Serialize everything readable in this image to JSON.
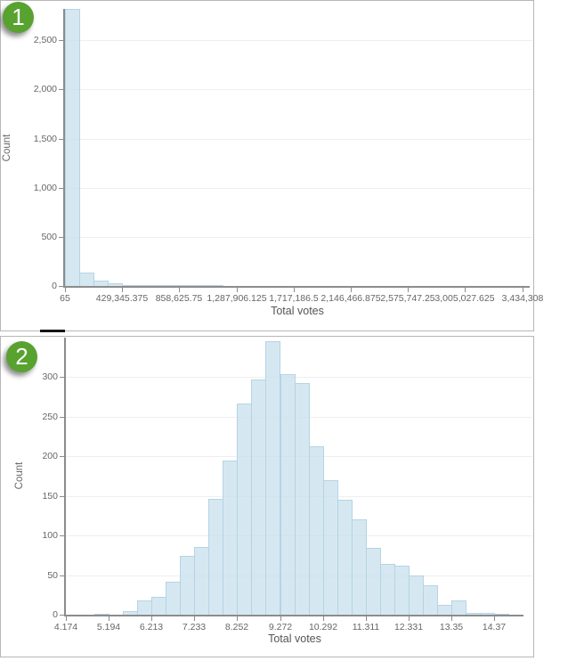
{
  "badges": {
    "panel1": "1",
    "panel2": "2"
  },
  "colors": {
    "bar_fill": "rgba(199,224,238,0.75)",
    "bar_border": "#b6d3e3",
    "accent_green": "#58a22f",
    "axis": "#8c8c8c",
    "grid": "#eeeeee",
    "tick_text": "#666666",
    "axis_title_text": "#555555",
    "panel_border": "#b7b7b7"
  },
  "chart_data": [
    {
      "type": "bar",
      "subtype": "histogram",
      "title": "",
      "xlabel": "Total votes",
      "ylabel": "Count",
      "grid": true,
      "legend": "none",
      "bin_start": 65,
      "bin_width": 107320.094,
      "values": [
        2820,
        140,
        55,
        30,
        10,
        6,
        3,
        2,
        1,
        1,
        1,
        0,
        0,
        0,
        0,
        0,
        0,
        0,
        0,
        0,
        0,
        0,
        0,
        0,
        0,
        0,
        0,
        0,
        0,
        0,
        0,
        0
      ],
      "x_tick_values": [
        65,
        429345.375,
        858625.75,
        1287906.125,
        1717186.5,
        2146466.875,
        2575747.25,
        3005027.625,
        3434308
      ],
      "x_tick_labels": [
        "65",
        "429,345.375",
        "858,625.75",
        "1,287,906.125",
        "1,717,186.5",
        "2,146,466.875",
        "2,575,747.25",
        "3,005,027.625",
        "3,434,308"
      ],
      "y_tick_values": [
        0,
        500,
        1000,
        1500,
        2000,
        2500
      ],
      "y_tick_labels": [
        "0",
        "500",
        "1,000",
        "1,500",
        "2,000",
        "2,500"
      ],
      "ylim": [
        0,
        2820
      ],
      "xlim": [
        65,
        3434308
      ]
    },
    {
      "type": "bar",
      "subtype": "histogram",
      "title": "",
      "xlabel": "Total votes",
      "ylabel": "Count",
      "grid": true,
      "legend": "none",
      "bin_start": 4.174,
      "bin_width": 0.34,
      "values": [
        0,
        0,
        1,
        0,
        4,
        18,
        23,
        42,
        74,
        85,
        146,
        195,
        267,
        297,
        345,
        304,
        293,
        213,
        170,
        145,
        120,
        84,
        64,
        62,
        49,
        37,
        12,
        18,
        2,
        2,
        1
      ],
      "x_tick_values": [
        4.174,
        5.194,
        6.213,
        7.233,
        8.252,
        9.272,
        10.292,
        11.311,
        12.331,
        13.35,
        14.37
      ],
      "x_tick_labels": [
        "4.174",
        "5.194",
        "6.213",
        "7.233",
        "8.252",
        "9.272",
        "10.292",
        "11.311",
        "12.331",
        "13.35",
        "14.37"
      ],
      "y_tick_values": [
        0,
        50,
        100,
        150,
        200,
        250,
        300
      ],
      "y_tick_labels": [
        "0",
        "50",
        "100",
        "150",
        "200",
        "250",
        "300"
      ],
      "ylim": [
        0,
        350
      ],
      "xlim": [
        4.174,
        15.3
      ]
    }
  ]
}
